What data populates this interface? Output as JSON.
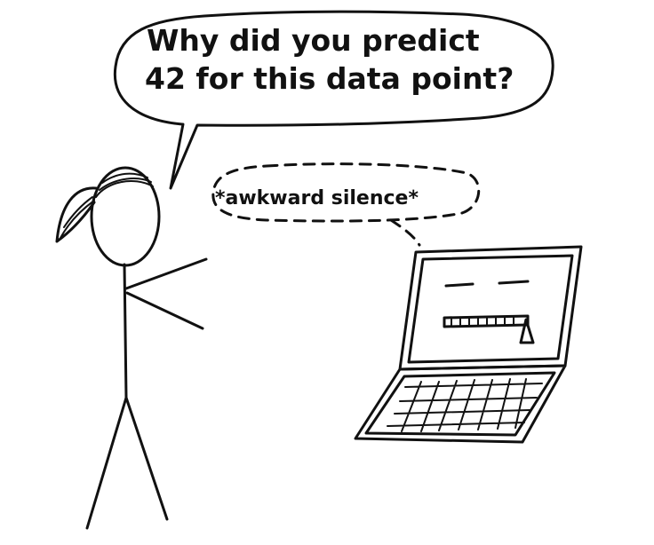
{
  "speech_bubble": {
    "line1": "Why did you predict",
    "line2": "42 for this data point?"
  },
  "thought_bubble": {
    "text": "*awkward silence*"
  },
  "colors": {
    "ink": "#111111",
    "background": "#ffffff"
  },
  "icons": {
    "person": "stick-figure-icon",
    "laptop": "laptop-icon"
  }
}
